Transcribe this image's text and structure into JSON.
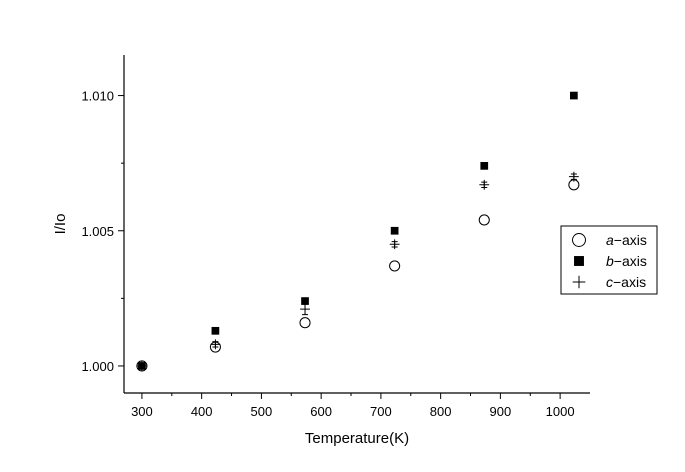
{
  "chart_data": {
    "type": "scatter",
    "title": "",
    "xlabel": "Temperature(K)",
    "ylabel": "I/Io",
    "xlim": [
      270,
      1050
    ],
    "ylim": [
      0.999,
      1.0115
    ],
    "x_ticks": [
      "300",
      "400",
      "500",
      "600",
      "700",
      "800",
      "900",
      "1000"
    ],
    "x_tick_values": [
      300,
      400,
      500,
      600,
      700,
      800,
      900,
      1000
    ],
    "y_ticks": [
      "1.000",
      "1.005",
      "1.010"
    ],
    "y_tick_values": [
      1.0,
      1.005,
      1.01
    ],
    "grid": false,
    "legend_position": "right",
    "series": [
      {
        "name": "a−axis",
        "italic_prefix": "a",
        "suffix": "−axis",
        "marker": "open-circle",
        "x": [
          300,
          423,
          573,
          723,
          873,
          1023
        ],
        "y": [
          1.0,
          1.0007,
          1.0016,
          1.0037,
          1.0054,
          1.0067
        ],
        "err": [
          0,
          0.0001,
          0.0001,
          0.0001,
          0.0001,
          0.0001
        ]
      },
      {
        "name": "b−axis",
        "italic_prefix": "b",
        "suffix": "−axis",
        "marker": "filled-square",
        "x": [
          300,
          423,
          573,
          723,
          873,
          1023
        ],
        "y": [
          1.0,
          1.0013,
          1.0024,
          1.005,
          1.0074,
          1.01
        ],
        "err": [
          0,
          0,
          0.0001,
          0,
          0,
          0
        ]
      },
      {
        "name": "c−axis",
        "italic_prefix": "c",
        "suffix": "−axis",
        "marker": "plus",
        "x": [
          300,
          423,
          573,
          723,
          873,
          1023
        ],
        "y": [
          1.0,
          1.0008,
          1.0021,
          1.0045,
          1.0067,
          1.007
        ],
        "err": [
          0,
          0.0001,
          0.0002,
          0.0001,
          0.0001,
          0.0001
        ]
      }
    ]
  }
}
